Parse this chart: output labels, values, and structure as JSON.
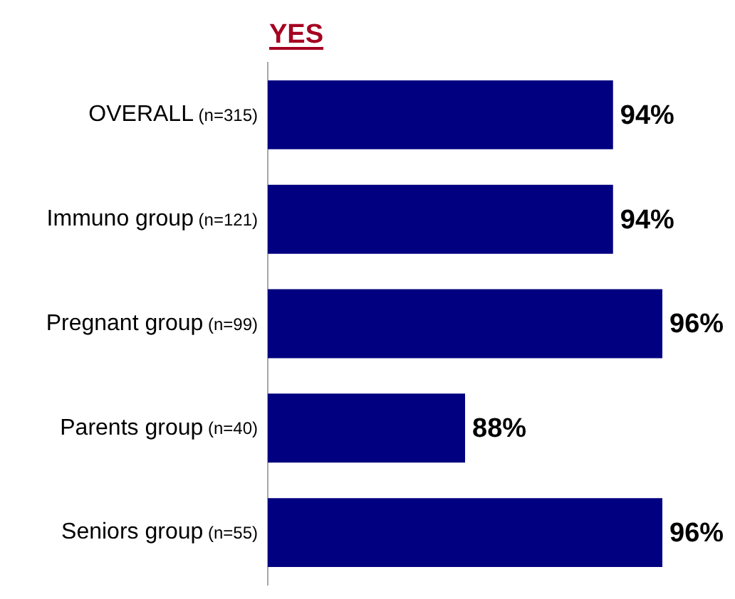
{
  "chart_data": {
    "type": "bar",
    "orientation": "horizontal",
    "title": "YES",
    "categories": [
      "OVERALL (n=315)",
      "Immuno group (n=121)",
      "Pregnant group (n=99)",
      "Parents group (n=40)",
      "Seniors group (n=55)"
    ],
    "values": [
      94,
      94,
      96,
      88,
      96
    ],
    "value_labels": [
      "94%",
      "94%",
      "96%",
      "88%",
      "96%"
    ],
    "color": "#000080",
    "xlim": [
      80,
      96
    ],
    "tick_labels": "y"
  }
}
